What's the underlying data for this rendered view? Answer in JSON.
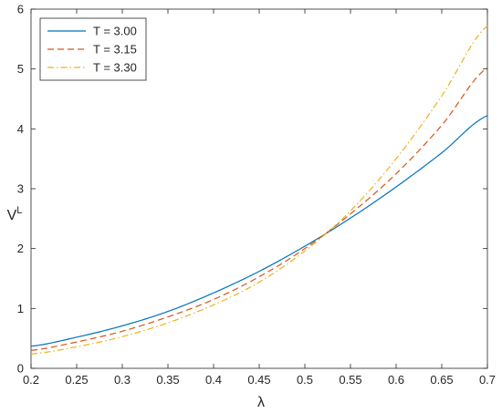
{
  "chart_data": {
    "type": "line",
    "xlabel": "λ",
    "ylabel": "V",
    "ylabel_sup": "L",
    "xlim": [
      0.2,
      0.7
    ],
    "ylim": [
      0,
      6
    ],
    "xticks": [
      "0.2",
      "0.25",
      "0.3",
      "0.35",
      "0.4",
      "0.45",
      "0.5",
      "0.55",
      "0.6",
      "0.65",
      "0.7"
    ],
    "yticks": [
      "0",
      "1",
      "2",
      "3",
      "4",
      "5",
      "6"
    ],
    "grid": false,
    "legend_position": "top-left",
    "x": [
      0.2,
      0.25,
      0.3,
      0.35,
      0.4,
      0.45,
      0.5,
      0.55,
      0.6,
      0.65,
      0.7
    ],
    "series": [
      {
        "name": "T = 3.00",
        "color": "#0072BD",
        "dash": "solid",
        "values": [
          0.37,
          0.52,
          0.71,
          0.95,
          1.26,
          1.62,
          2.04,
          2.51,
          3.03,
          3.6,
          4.22
        ]
      },
      {
        "name": "T = 3.15",
        "color": "#D95319",
        "dash": "dashed",
        "values": [
          0.3,
          0.44,
          0.62,
          0.86,
          1.15,
          1.53,
          2.0,
          2.58,
          3.25,
          4.06,
          5.02
        ]
      },
      {
        "name": "T = 3.30",
        "color": "#EDB120",
        "dash": "dashdot",
        "values": [
          0.24,
          0.36,
          0.53,
          0.76,
          1.06,
          1.44,
          1.96,
          2.63,
          3.5,
          4.55,
          5.72
        ]
      }
    ]
  }
}
